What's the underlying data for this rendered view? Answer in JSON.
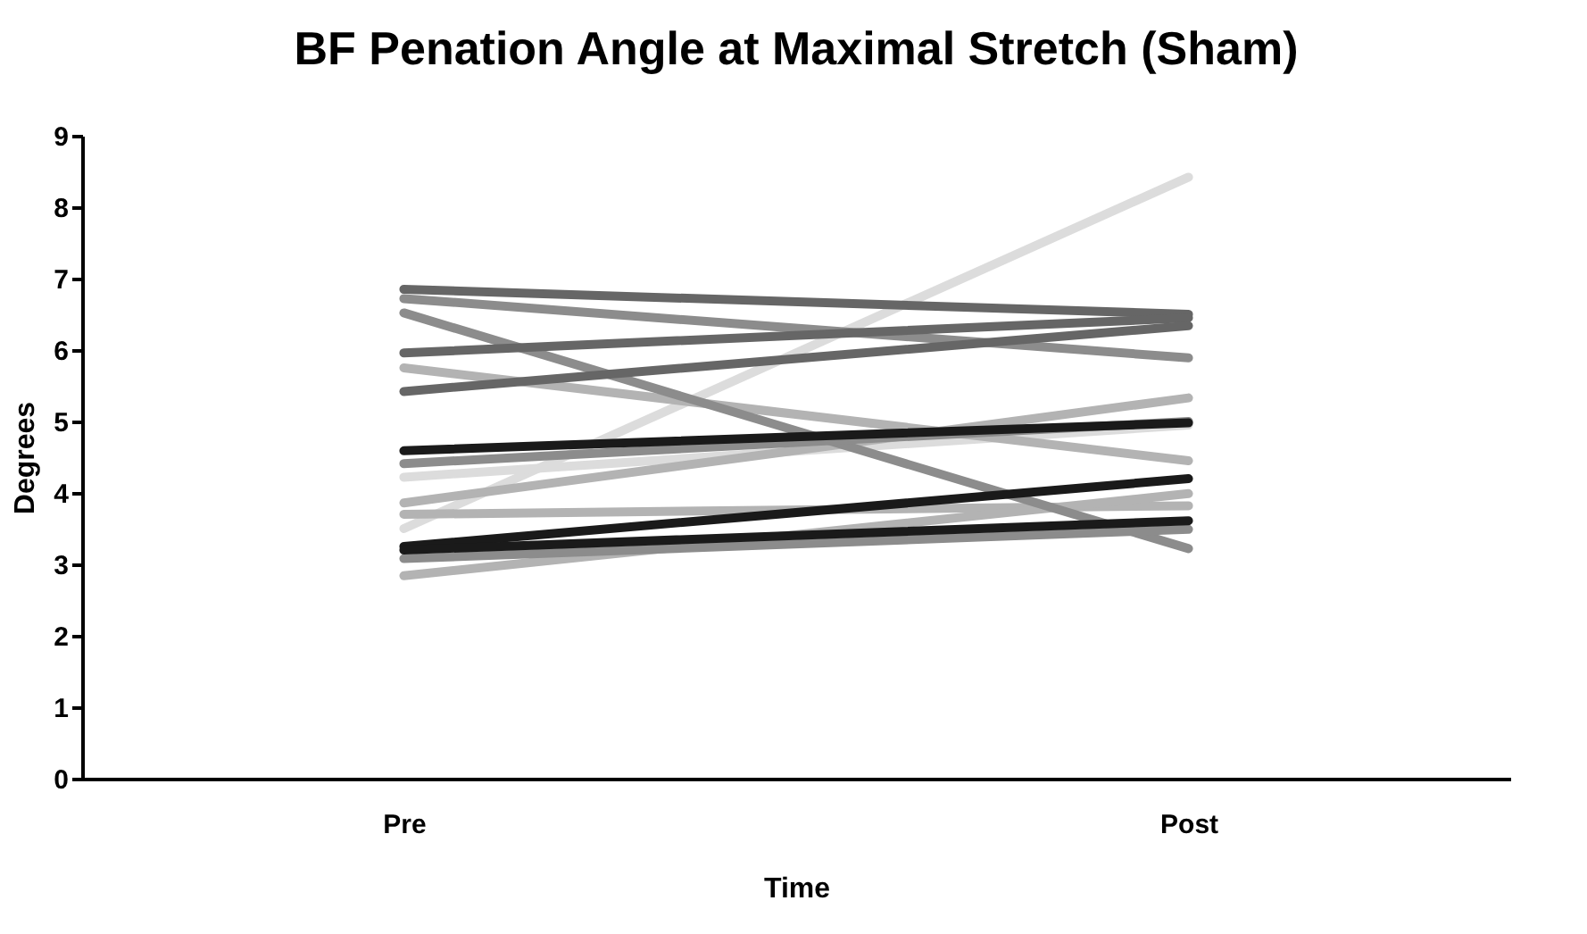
{
  "chart_data": {
    "type": "line",
    "title": "BF Penation Angle at Maximal Stretch (Sham)",
    "xlabel": "Time",
    "ylabel": "Degrees",
    "categories": [
      "Pre",
      "Post"
    ],
    "ylim": [
      0,
      9
    ],
    "yticks": [
      0,
      1,
      2,
      3,
      4,
      5,
      6,
      7,
      8,
      9
    ],
    "grid": false,
    "legend": false,
    "marker": "none",
    "line_style": "solid",
    "series": [
      {
        "color": "#dcdcdc",
        "values": [
          3.5,
          8.42
        ]
      },
      {
        "color": "#dcdcdc",
        "values": [
          4.22,
          4.95
        ]
      },
      {
        "color": "#b3b3b3",
        "values": [
          5.75,
          4.45
        ]
      },
      {
        "color": "#b3b3b3",
        "values": [
          3.86,
          5.33
        ]
      },
      {
        "color": "#b3b3b3",
        "values": [
          3.7,
          3.82
        ]
      },
      {
        "color": "#b3b3b3",
        "values": [
          2.84,
          3.99
        ]
      },
      {
        "color": "#8c8c8c",
        "values": [
          6.72,
          5.89
        ]
      },
      {
        "color": "#8c8c8c",
        "values": [
          6.52,
          3.22
        ]
      },
      {
        "color": "#8c8c8c",
        "values": [
          4.41,
          5.0
        ]
      },
      {
        "color": "#8c8c8c",
        "values": [
          3.08,
          3.49
        ]
      },
      {
        "color": "#666666",
        "values": [
          6.85,
          6.5
        ]
      },
      {
        "color": "#666666",
        "values": [
          5.96,
          6.45
        ]
      },
      {
        "color": "#666666",
        "values": [
          5.42,
          6.34
        ]
      },
      {
        "color": "#1a1a1a",
        "values": [
          3.25,
          4.2
        ]
      },
      {
        "color": "#1a1a1a",
        "values": [
          3.2,
          3.61
        ]
      },
      {
        "color": "#1a1a1a",
        "values": [
          4.59,
          4.98
        ]
      }
    ]
  }
}
